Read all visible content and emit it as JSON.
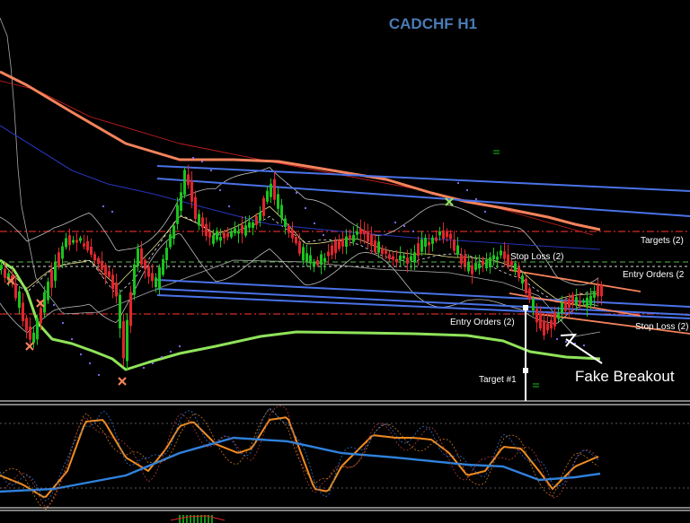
{
  "chart_data": {
    "type": "candlestick",
    "title": "CADCHF H1",
    "colors": {
      "background": "#000000",
      "bull": "#19c41d",
      "bear": "#e0262c",
      "channel": "#4a72e8",
      "orange_lines": "#f5835c",
      "fast_ma": "#8fe35a",
      "title": "#4a7bb5",
      "separator": "#ffffff",
      "stoch_orange": "#f08c20",
      "stoch_blue": "#2f82dd"
    },
    "annotations": {
      "targets": "Targets (2)",
      "stop_loss_top": "Stop Loss (2)",
      "entry_orders_right": "Entry Orders (2",
      "entry_orders_left": "Entry Orders (2)",
      "stop_loss_right": "Stop Loss (2)",
      "target_1": "Target #1",
      "fake_breakout": "Fake Breakout"
    }
  }
}
